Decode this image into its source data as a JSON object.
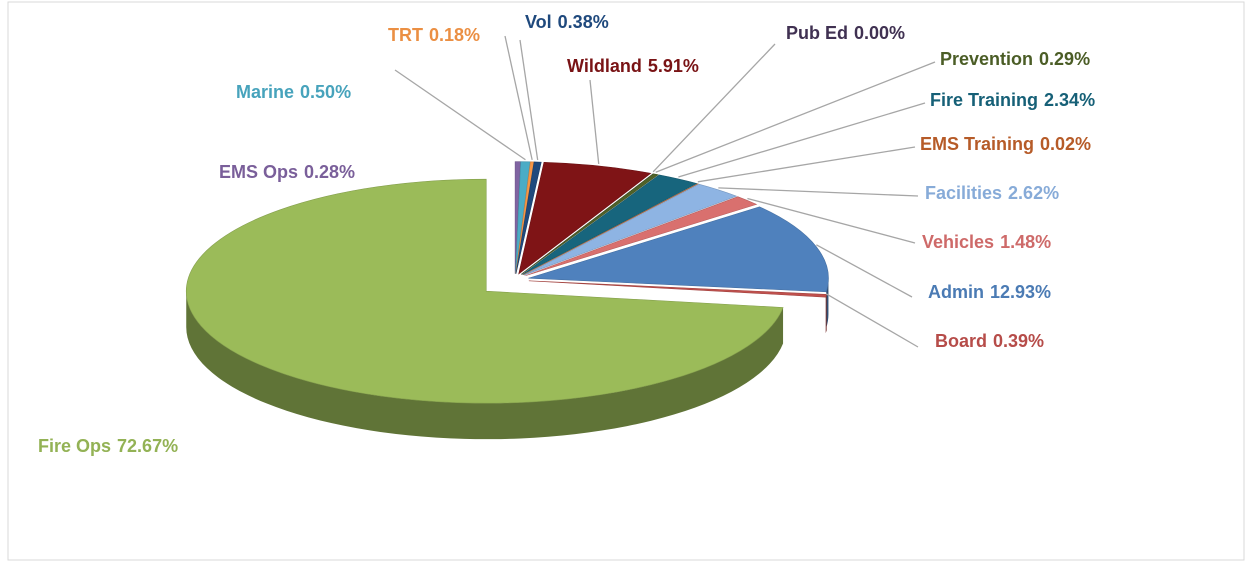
{
  "chart_data": {
    "type": "pie",
    "categories": [
      "EMS Ops",
      "Marine",
      "TRT",
      "Vol",
      "Wildland",
      "Pub Ed",
      "Prevention",
      "Fire Training",
      "EMS Training",
      "Facilities",
      "Vehicles",
      "Admin",
      "Board",
      "Fire Ops"
    ],
    "values": [
      0.28,
      0.5,
      0.18,
      0.38,
      5.91,
      0.0,
      0.29,
      2.34,
      0.02,
      2.62,
      1.48,
      12.93,
      0.39,
      72.67
    ],
    "value_labels": [
      "0.28%",
      "0.50%",
      "0.18%",
      "0.38%",
      "5.91%",
      "0.00%",
      "0.29%",
      "2.34%",
      "0.02%",
      "2.62%",
      "1.48%",
      "12.93%",
      "0.39%",
      "72.67%"
    ],
    "colors": [
      "#8064a2",
      "#4bacc6",
      "#f79646",
      "#1f497d",
      "#7f1416",
      "#403152",
      "#4f6228",
      "#17657d",
      "#c0602a",
      "#8eb4e3",
      "#d9706e",
      "#4f81bd",
      "#c0504d",
      "#9bbb59"
    ]
  }
}
